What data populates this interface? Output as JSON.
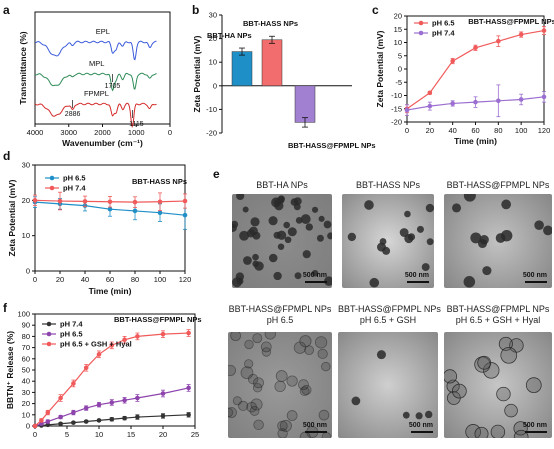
{
  "panels": {
    "a": {
      "letter": "a",
      "chart_data": {
        "type": "line",
        "title": "",
        "xlabel": "Wavenumber (cm⁻¹)",
        "ylabel": "Transmittance (%)",
        "xlim": [
          4000,
          0
        ],
        "x_ticks": [
          "4000",
          "3000",
          "2000",
          "1000",
          "0"
        ],
        "series": [
          {
            "name": "EPL",
            "color": "#3b5bdb"
          },
          {
            "name": "MPL",
            "color": "#2e8b57"
          },
          {
            "name": "FPMPL",
            "color": "#d42a2a"
          }
        ],
        "annotations": [
          "2886",
          "1705",
          "1115"
        ]
      }
    },
    "b": {
      "letter": "b",
      "chart_data": {
        "type": "bar",
        "title": "",
        "ylabel": "Zeta Potential (mV)",
        "ylim": [
          -20,
          30
        ],
        "y_ticks": [
          "-20",
          "-10",
          "0",
          "10",
          "20",
          "30"
        ],
        "categories": [
          "BBT-HA NPs",
          "BBT-HASS NPs",
          "BBT-HASS@FPMPL NPs"
        ],
        "values": [
          14.5,
          19.5,
          -15.5
        ],
        "errors": [
          1.5,
          1.5,
          2.0
        ],
        "colors": [
          "#1f8fc7",
          "#f26d6d",
          "#a17fd1"
        ]
      }
    },
    "c": {
      "letter": "c",
      "chart_data": {
        "type": "line",
        "title": "BBT-HASS@FPMPL NPs",
        "xlabel": "Time (min)",
        "ylabel": "Zeta Potential (mV)",
        "xlim": [
          0,
          120
        ],
        "ylim": [
          -20,
          20
        ],
        "x_ticks": [
          "0",
          "20",
          "40",
          "60",
          "80",
          "100",
          "120"
        ],
        "y_ticks": [
          "-20",
          "-15",
          "-10",
          "-5",
          "0",
          "5",
          "10",
          "15",
          "20"
        ],
        "x": [
          0,
          20,
          40,
          60,
          80,
          100,
          120
        ],
        "series": [
          {
            "name": "pH 6.5",
            "color": "#f05a5a",
            "values": [
              -15,
              -9,
              3,
              8,
              10.5,
              13,
              14.5
            ],
            "errors": [
              1.5,
              0.5,
              1,
              1,
              2,
              1,
              1.5
            ]
          },
          {
            "name": "pH 7.4",
            "color": "#9b6fd1",
            "values": [
              -15.5,
              -14,
              -13,
              -12.5,
              -12,
              -11.5,
              -10.5
            ],
            "errors": [
              2,
              1.5,
              1,
              2,
              6,
              2,
              2
            ]
          }
        ]
      }
    },
    "d": {
      "letter": "d",
      "chart_data": {
        "type": "line",
        "title": "BBT-HASS NPs",
        "xlabel": "Time (min)",
        "ylabel": "Zeta Potential (mV)",
        "xlim": [
          0,
          120
        ],
        "ylim": [
          0,
          30
        ],
        "x_ticks": [
          "0",
          "20",
          "40",
          "60",
          "80",
          "100",
          "120"
        ],
        "y_ticks": [
          "0",
          "10",
          "20",
          "30"
        ],
        "x": [
          0,
          20,
          40,
          60,
          80,
          100,
          120
        ],
        "series": [
          {
            "name": "pH 6.5",
            "color": "#1f8fc7",
            "values": [
              19.5,
              19,
              18.5,
              17.5,
              17,
              16.5,
              15.8
            ],
            "errors": [
              1.5,
              1.5,
              1.5,
              2,
              2.5,
              2.5,
              4
            ]
          },
          {
            "name": "pH 7.4",
            "color": "#f05a5a",
            "values": [
              20,
              19.8,
              19.7,
              19.6,
              19.5,
              19.6,
              19.8
            ],
            "errors": [
              1.5,
              2.5,
              1.5,
              1.5,
              1.5,
              2.5,
              2
            ]
          }
        ]
      }
    },
    "e": {
      "letter": "e",
      "images": [
        {
          "title": "BBT-HA NPs",
          "scale": "500 nm"
        },
        {
          "title": "BBT-HASS NPs",
          "scale": "500 nm"
        },
        {
          "title": "BBT-HASS@FPMPL NPs",
          "scale": "500 nm"
        },
        {
          "title": "BBT-HASS@FPMPL NPs",
          "subtitle": "pH 6.5",
          "scale": "500 nm"
        },
        {
          "title": "BBT-HASS@FPMPL NPs",
          "subtitle": "pH 6.5 + GSH",
          "scale": "500 nm"
        },
        {
          "title": "BBT-HASS@FPMPL NPs",
          "subtitle": "pH 6.5 + GSH + Hyal",
          "scale": "500 nm"
        }
      ]
    },
    "f": {
      "letter": "f",
      "chart_data": {
        "type": "line",
        "title": "BBT-HASS@FPMPL NPs",
        "xlabel": "Time (h)",
        "ylabel": "BBTN⁺ Release (%)",
        "xlim": [
          0,
          25
        ],
        "ylim": [
          0,
          100
        ],
        "x_ticks": [
          "0",
          "5",
          "10",
          "15",
          "20",
          "25"
        ],
        "y_ticks": [
          "0",
          "10",
          "20",
          "30",
          "40",
          "50",
          "60",
          "70",
          "80",
          "90",
          "100"
        ],
        "x": [
          0,
          1,
          2,
          4,
          6,
          8,
          10,
          12,
          14,
          16,
          20,
          24
        ],
        "series": [
          {
            "name": "pH 7.4",
            "color": "#333333",
            "values": [
              0,
              0.5,
              1,
              2,
              3,
              4,
              5,
              6,
              7,
              8,
              9,
              10
            ],
            "errors": [
              0.3,
              0.5,
              0.5,
              1,
              1,
              1,
              1,
              1.5,
              1.5,
              2,
              2,
              2
            ]
          },
          {
            "name": "pH 6.5",
            "color": "#8e44ad",
            "values": [
              0,
              2,
              4,
              8,
              12,
              16,
              19,
              21,
              23,
              25,
              29,
              34
            ],
            "errors": [
              0.5,
              1,
              1.5,
              1.5,
              2,
              2,
              2,
              2.5,
              2.5,
              3,
              3,
              3
            ]
          },
          {
            "name": "pH 6.5 + GSH + Hyal",
            "color": "#f05a5a",
            "values": [
              0,
              5,
              12,
              25,
              38,
              52,
              64,
              72,
              77,
              80,
              82,
              83
            ],
            "errors": [
              1,
              1.5,
              2,
              3,
              3,
              3,
              3,
              3,
              3,
              3,
              3,
              3
            ]
          }
        ]
      }
    }
  }
}
